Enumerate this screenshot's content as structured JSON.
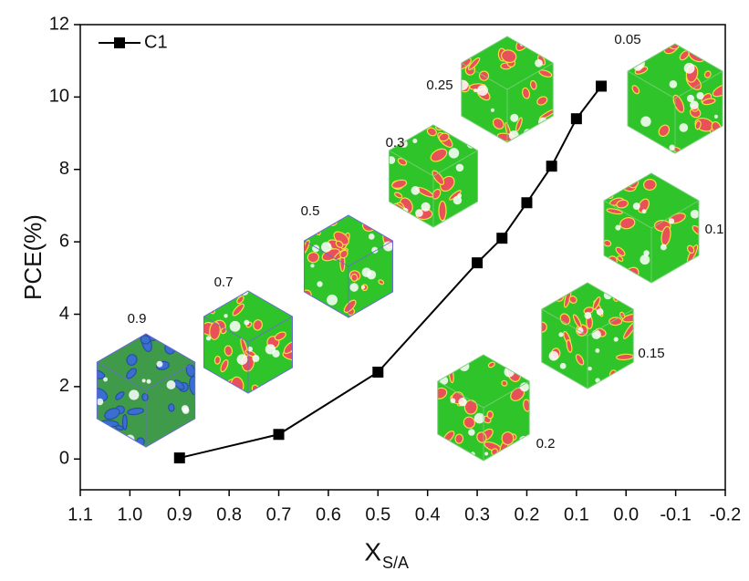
{
  "chart_data": {
    "type": "line",
    "x_label": "X",
    "x_label_subscript": "S/A",
    "y_label": "PCE(%)",
    "x": [
      0.9,
      0.7,
      0.5,
      0.3,
      0.25,
      0.2,
      0.15,
      0.1,
      0.05
    ],
    "series": [
      {
        "name": "C1",
        "color": "#000000",
        "values": [
          0.03,
          0.68,
          2.4,
          5.42,
          6.1,
          7.08,
          8.09,
          9.4,
          10.3
        ]
      }
    ],
    "xlim": [
      1.1,
      -0.2
    ],
    "xticks": [
      1.1,
      {
        "value": 1,
        "label": "1.0"
      },
      0.9,
      0.8,
      0.7,
      0.6,
      0.5,
      0.4,
      0.3,
      0.2,
      0.1,
      {
        "value": 0,
        "label": "0.0"
      },
      -0.1,
      -0.2
    ],
    "ylim": [
      -0.85,
      12
    ],
    "yticks": [
      0,
      2,
      4,
      6,
      8,
      10,
      12
    ],
    "legend": "top-left",
    "cube_labels": [
      "0.9",
      "0.7",
      "0.5",
      "0.3",
      "0.25",
      "0.05",
      "0.1",
      "0.15",
      "0.2"
    ]
  }
}
